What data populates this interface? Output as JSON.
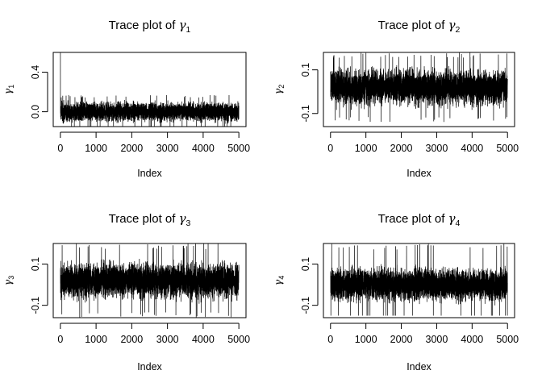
{
  "chart_data": [
    {
      "type": "line",
      "title_prefix": "Trace plot of",
      "symbol": "γ",
      "subscript": "1",
      "xlabel": "Index",
      "ylabel_symbol": "γ",
      "ylabel_subscript": "1",
      "xlim": [
        0,
        5000
      ],
      "ylim": [
        -0.15,
        0.6
      ],
      "xticks": [
        0,
        1000,
        2000,
        3000,
        4000,
        5000
      ],
      "xtick_labels": [
        "0",
        "1000",
        "2000",
        "3000",
        "4000",
        "5000"
      ],
      "yticks": [
        0.0,
        0.4
      ],
      "ytick_labels": [
        "0.0",
        "0.4"
      ],
      "n_iterations": 5000,
      "trace": {
        "start": 0.6,
        "mean": 0.0,
        "band": [
          -0.12,
          0.14
        ],
        "extremes": [
          -0.15,
          0.17
        ]
      },
      "color": "#000000"
    },
    {
      "type": "line",
      "title_prefix": "Trace plot of",
      "symbol": "γ",
      "subscript": "2",
      "xlabel": "Index",
      "ylabel_symbol": "γ",
      "ylabel_subscript": "2",
      "xlim": [
        0,
        5000
      ],
      "ylim": [
        -0.16,
        0.18
      ],
      "xticks": [
        0,
        1000,
        2000,
        3000,
        4000,
        5000
      ],
      "xtick_labels": [
        "0",
        "1000",
        "2000",
        "3000",
        "4000",
        "5000"
      ],
      "yticks": [
        -0.1,
        0.1
      ],
      "ytick_labels": [
        "-0.1",
        "0.1"
      ],
      "n_iterations": 5000,
      "trace": {
        "mean": 0.02,
        "band": [
          -0.1,
          0.12
        ],
        "extremes": [
          -0.15,
          0.18
        ]
      },
      "color": "#000000"
    },
    {
      "type": "line",
      "title_prefix": "Trace plot of",
      "symbol": "γ",
      "subscript": "3",
      "xlabel": "Index",
      "ylabel_symbol": "γ",
      "ylabel_subscript": "3",
      "xlim": [
        0,
        5000
      ],
      "ylim": [
        -0.16,
        0.2
      ],
      "xticks": [
        0,
        1000,
        2000,
        3000,
        4000,
        5000
      ],
      "xtick_labels": [
        "0",
        "1000",
        "2000",
        "3000",
        "4000",
        "5000"
      ],
      "yticks": [
        -0.1,
        0.1
      ],
      "ytick_labels": [
        "-0.1",
        "0.1"
      ],
      "n_iterations": 5000,
      "trace": {
        "mean": 0.02,
        "band": [
          -0.1,
          0.13
        ],
        "extremes": [
          -0.16,
          0.2
        ]
      },
      "color": "#000000"
    },
    {
      "type": "line",
      "title_prefix": "Trace plot of",
      "symbol": "γ",
      "subscript": "4",
      "xlabel": "Index",
      "ylabel_symbol": "γ",
      "ylabel_subscript": "4",
      "xlim": [
        0,
        5000
      ],
      "ylim": [
        -0.16,
        0.2
      ],
      "xticks": [
        0,
        1000,
        2000,
        3000,
        4000,
        5000
      ],
      "xtick_labels": [
        "0",
        "1000",
        "2000",
        "3000",
        "4000",
        "5000"
      ],
      "yticks": [
        -0.1,
        0.1
      ],
      "ytick_labels": [
        "-0.1",
        "0.1"
      ],
      "n_iterations": 5000,
      "trace": {
        "mean": 0.0,
        "band": [
          -0.1,
          0.11
        ],
        "extremes": [
          -0.15,
          0.2
        ]
      },
      "color": "#000000"
    }
  ]
}
